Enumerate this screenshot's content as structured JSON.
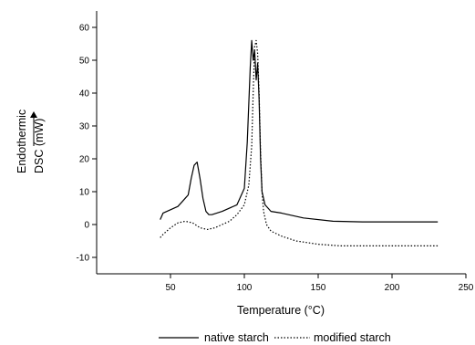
{
  "chart_data": {
    "type": "line",
    "xlabel": "Temperature (°C)",
    "ylabel": "DSC (mW)",
    "ylabel_note": "Endothermic",
    "xlim": [
      0,
      250
    ],
    "ylim": [
      -15,
      65
    ],
    "xticks": [
      50,
      100,
      150,
      200,
      250
    ],
    "yticks": [
      -10,
      0,
      10,
      20,
      30,
      40,
      50,
      60
    ],
    "grid": false,
    "legend_position": "bottom",
    "series": [
      {
        "name": "native starch",
        "style": "solid",
        "color": "#000000",
        "x": [
          43,
          45,
          50,
          55,
          58,
          60,
          62,
          64,
          66,
          68,
          70,
          72,
          74,
          76,
          78,
          85,
          95,
          100,
          102,
          104,
          105,
          106,
          107,
          108,
          109,
          110,
          111,
          112,
          114,
          118,
          125,
          140,
          160,
          180,
          200,
          231
        ],
        "y": [
          1.5,
          3.5,
          4.5,
          5.5,
          7,
          8,
          9,
          14,
          18,
          19,
          14,
          8,
          4,
          3,
          3,
          4,
          6,
          11,
          25,
          48,
          56,
          50,
          53,
          44,
          49,
          38,
          20,
          10,
          6,
          4,
          3.5,
          2,
          1,
          0.8,
          0.8,
          0.8
        ]
      },
      {
        "name": "modified starch",
        "style": "dotted",
        "color": "#000000",
        "x": [
          43,
          45,
          50,
          55,
          60,
          65,
          70,
          75,
          80,
          85,
          90,
          95,
          100,
          103,
          105,
          106,
          107,
          108,
          109,
          110,
          111,
          112,
          113,
          115,
          118,
          125,
          135,
          150,
          165,
          180,
          200,
          231
        ],
        "y": [
          -4,
          -3,
          -1,
          0.5,
          1,
          0.5,
          -1,
          -1.5,
          -1,
          0,
          1,
          3,
          6,
          12,
          24,
          40,
          54,
          56,
          52,
          40,
          22,
          10,
          4,
          0,
          -2,
          -3.5,
          -5,
          -6,
          -6.5,
          -6.5,
          -6.5,
          -6.5
        ]
      }
    ]
  }
}
